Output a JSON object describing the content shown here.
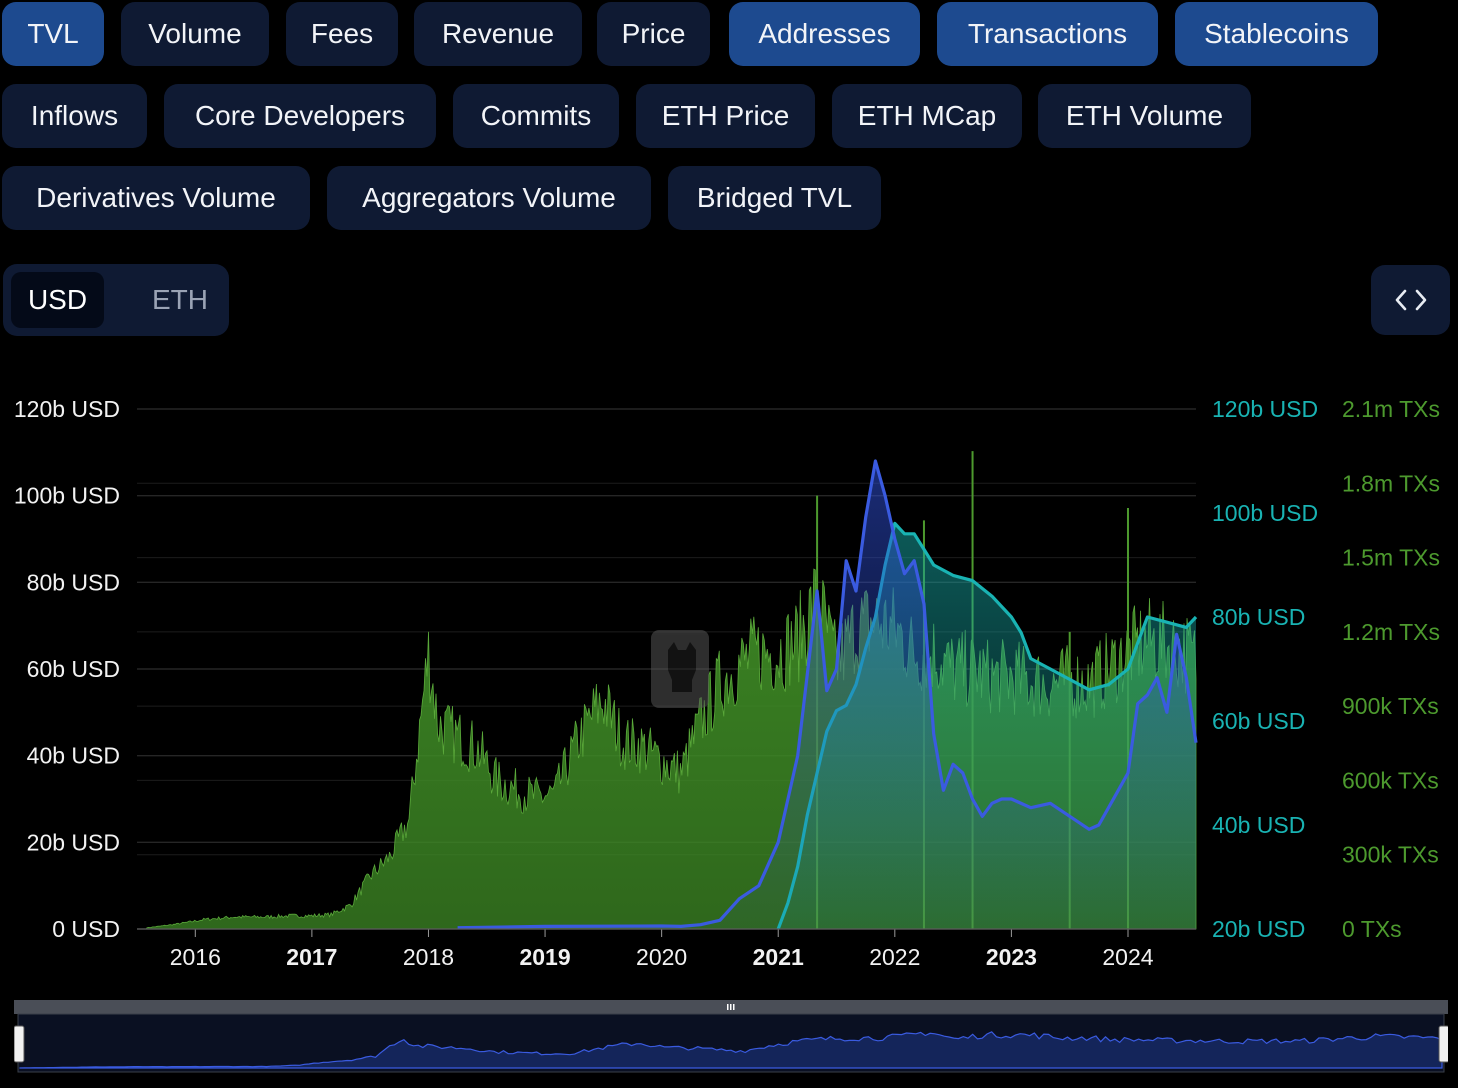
{
  "toggles": {
    "row1": [
      {
        "label": "TVL",
        "active": true
      },
      {
        "label": "Volume",
        "active": false
      },
      {
        "label": "Fees",
        "active": false
      },
      {
        "label": "Revenue",
        "active": false
      },
      {
        "label": "Price",
        "active": false
      },
      {
        "label": "Addresses",
        "active": true
      },
      {
        "label": "Transactions",
        "active": true
      },
      {
        "label": "Stablecoins",
        "active": true
      }
    ],
    "row2": [
      {
        "label": "Inflows",
        "active": false
      },
      {
        "label": "Core Developers",
        "active": false
      },
      {
        "label": "Commits",
        "active": false
      },
      {
        "label": "ETH Price",
        "active": false
      },
      {
        "label": "ETH MCap",
        "active": false
      },
      {
        "label": "ETH Volume",
        "active": false
      }
    ],
    "row3": [
      {
        "label": "Derivatives Volume",
        "active": false
      },
      {
        "label": "Aggregators Volume",
        "active": false
      },
      {
        "label": "Bridged TVL",
        "active": false
      }
    ]
  },
  "denomination": {
    "usd_label": "USD",
    "eth_label": "ETH",
    "selected": "USD"
  },
  "embed": {
    "icon": "code-brackets-icon"
  },
  "colors": {
    "background": "#000000",
    "chip": "#0f1a33",
    "chip_active": "#1d4a8f",
    "tvl": "#3a5be0",
    "stablecoins": "#19b3b3",
    "transactions": "#4d9a2e"
  },
  "chart_data": {
    "type": "area",
    "x_range": [
      "2015-07",
      "2024-08"
    ],
    "x_ticks": [
      {
        "label": "2016",
        "bold": false
      },
      {
        "label": "2017",
        "bold": true
      },
      {
        "label": "2018",
        "bold": false
      },
      {
        "label": "2019",
        "bold": true
      },
      {
        "label": "2020",
        "bold": false
      },
      {
        "label": "2021",
        "bold": true
      },
      {
        "label": "2022",
        "bold": false
      },
      {
        "label": "2023",
        "bold": true
      },
      {
        "label": "2024",
        "bold": false
      }
    ],
    "axes": {
      "left": {
        "ticks": [
          "0 USD",
          "20b USD",
          "40b USD",
          "60b USD",
          "80b USD",
          "100b USD",
          "120b USD"
        ],
        "range": [
          0,
          120
        ]
      },
      "middle": {
        "ticks": [
          "20b USD",
          "40b USD",
          "60b USD",
          "80b USD",
          "100b USD",
          "120b USD"
        ],
        "range": [
          20,
          120
        ]
      },
      "right": {
        "ticks": [
          "0 TXs",
          "300k TXs",
          "600k TXs",
          "900k TXs",
          "1.2m TXs",
          "1.5m TXs",
          "1.8m TXs",
          "2.1m TXs"
        ],
        "range": [
          0,
          2100000
        ]
      }
    },
    "grid": true,
    "series": [
      {
        "role": "transactions",
        "axis": "right",
        "color": "#4d9a2e",
        "style": "bars",
        "points": [
          [
            "2015-08",
            5000
          ],
          [
            "2015-11",
            20000
          ],
          [
            "2016-02",
            40000
          ],
          [
            "2016-05",
            50000
          ],
          [
            "2016-08",
            50000
          ],
          [
            "2016-11",
            55000
          ],
          [
            "2017-01",
            55000
          ],
          [
            "2017-03",
            60000
          ],
          [
            "2017-05",
            100000
          ],
          [
            "2017-07",
            220000
          ],
          [
            "2017-09",
            300000
          ],
          [
            "2017-11",
            450000
          ],
          [
            "2018-01",
            1150000
          ],
          [
            "2018-02",
            850000
          ],
          [
            "2018-04",
            800000
          ],
          [
            "2018-06",
            750000
          ],
          [
            "2018-08",
            620000
          ],
          [
            "2018-10",
            580000
          ],
          [
            "2018-12",
            550000
          ],
          [
            "2019-02",
            560000
          ],
          [
            "2019-04",
            750000
          ],
          [
            "2019-06",
            900000
          ],
          [
            "2019-07",
            950000
          ],
          [
            "2019-09",
            780000
          ],
          [
            "2019-11",
            760000
          ],
          [
            "2020-01",
            700000
          ],
          [
            "2020-03",
            650000
          ],
          [
            "2020-05",
            860000
          ],
          [
            "2020-07",
            1020000
          ],
          [
            "2020-09",
            1100000
          ],
          [
            "2020-11",
            1150000
          ],
          [
            "2021-01",
            1150000
          ],
          [
            "2021-03",
            1200000
          ],
          [
            "2021-05",
            1380000
          ],
          [
            "2021-07",
            1100000
          ],
          [
            "2021-09",
            1250000
          ],
          [
            "2021-11",
            1280000
          ],
          [
            "2022-01",
            1250000
          ],
          [
            "2022-03",
            1150000
          ],
          [
            "2022-05",
            1150000
          ],
          [
            "2022-07",
            1080000
          ],
          [
            "2022-09",
            1080000
          ],
          [
            "2022-11",
            1050000
          ],
          [
            "2023-01",
            1050000
          ],
          [
            "2023-03",
            1030000
          ],
          [
            "2023-05",
            1020000
          ],
          [
            "2023-07",
            1030000
          ],
          [
            "2023-09",
            1020000
          ],
          [
            "2023-11",
            1080000
          ],
          [
            "2024-01",
            1150000
          ],
          [
            "2024-03",
            1200000
          ],
          [
            "2024-05",
            1180000
          ],
          [
            "2024-07",
            1150000
          ],
          [
            "2024-08",
            1120000
          ]
        ],
        "spikes": [
          [
            "2022-09",
            1930000
          ],
          [
            "2023-07",
            1200000
          ],
          [
            "2024-01",
            1700000
          ],
          [
            "2022-04",
            1650000
          ],
          [
            "2021-05",
            1750000
          ]
        ]
      },
      {
        "role": "stablecoins",
        "axis": "middle",
        "color": "#19b3b3",
        "style": "area",
        "points": [
          [
            "2021-01",
            20
          ],
          [
            "2021-02",
            25
          ],
          [
            "2021-03",
            32
          ],
          [
            "2021-04",
            42
          ],
          [
            "2021-05",
            50
          ],
          [
            "2021-06",
            58
          ],
          [
            "2021-07",
            62
          ],
          [
            "2021-08",
            63
          ],
          [
            "2021-09",
            67
          ],
          [
            "2021-10",
            74
          ],
          [
            "2021-11",
            80
          ],
          [
            "2021-12",
            90
          ],
          [
            "2022-01",
            98
          ],
          [
            "2022-02",
            96
          ],
          [
            "2022-03",
            96
          ],
          [
            "2022-04",
            93
          ],
          [
            "2022-05",
            90
          ],
          [
            "2022-07",
            88
          ],
          [
            "2022-09",
            87
          ],
          [
            "2022-11",
            84
          ],
          [
            "2023-01",
            80
          ],
          [
            "2023-02",
            77
          ],
          [
            "2023-03",
            72
          ],
          [
            "2023-05",
            70
          ],
          [
            "2023-07",
            68
          ],
          [
            "2023-09",
            66
          ],
          [
            "2023-11",
            67
          ],
          [
            "2024-01",
            70
          ],
          [
            "2024-03",
            80
          ],
          [
            "2024-05",
            79
          ],
          [
            "2024-07",
            78
          ],
          [
            "2024-08",
            80
          ]
        ]
      },
      {
        "role": "tvl",
        "axis": "left",
        "color": "#3a5be0",
        "style": "area",
        "points": [
          [
            "2018-04",
            0.3
          ],
          [
            "2019-01",
            0.6
          ],
          [
            "2020-01",
            0.7
          ],
          [
            "2020-03",
            0.6
          ],
          [
            "2020-05",
            1
          ],
          [
            "2020-07",
            2
          ],
          [
            "2020-09",
            7
          ],
          [
            "2020-11",
            10
          ],
          [
            "2021-01",
            20
          ],
          [
            "2021-03",
            40
          ],
          [
            "2021-05",
            78
          ],
          [
            "2021-06",
            55
          ],
          [
            "2021-07",
            60
          ],
          [
            "2021-08",
            85
          ],
          [
            "2021-09",
            78
          ],
          [
            "2021-10",
            95
          ],
          [
            "2021-11",
            108
          ],
          [
            "2021-12",
            100
          ],
          [
            "2022-01",
            90
          ],
          [
            "2022-02",
            82
          ],
          [
            "2022-03",
            85
          ],
          [
            "2022-04",
            75
          ],
          [
            "2022-05",
            45
          ],
          [
            "2022-06",
            32
          ],
          [
            "2022-07",
            38
          ],
          [
            "2022-08",
            36
          ],
          [
            "2022-09",
            30
          ],
          [
            "2022-10",
            26
          ],
          [
            "2022-11",
            29
          ],
          [
            "2022-12",
            30
          ],
          [
            "2023-01",
            30
          ],
          [
            "2023-03",
            28
          ],
          [
            "2023-05",
            29
          ],
          [
            "2023-07",
            26
          ],
          [
            "2023-09",
            23
          ],
          [
            "2023-10",
            24
          ],
          [
            "2023-12",
            32
          ],
          [
            "2024-01",
            36
          ],
          [
            "2024-02",
            52
          ],
          [
            "2024-03",
            54
          ],
          [
            "2024-04",
            58
          ],
          [
            "2024-05",
            50
          ],
          [
            "2024-06",
            68
          ],
          [
            "2024-07",
            58
          ],
          [
            "2024-08",
            43
          ]
        ]
      }
    ]
  }
}
